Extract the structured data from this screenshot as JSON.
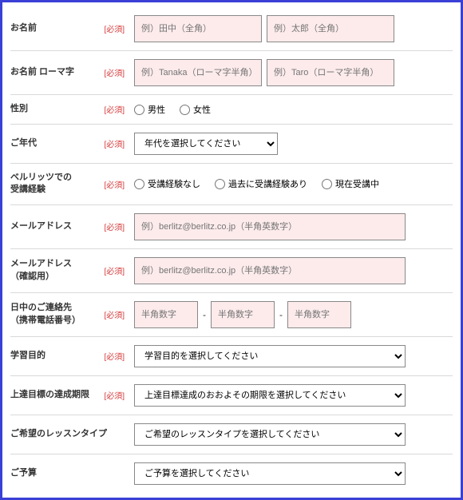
{
  "colors": {
    "border": "#3a3fd6",
    "required": "#d63a3a",
    "pink_bg": "#fdebec",
    "input_border": "#888888",
    "divider": "#d9d9d9"
  },
  "required_label": "[必須]",
  "rows": {
    "name": {
      "label": "お名前",
      "last_ph": "例）田中（全角）",
      "first_ph": "例）太郎（全角）"
    },
    "name_roma": {
      "label": "お名前 ローマ字",
      "last_ph": "例）Tanaka（ローマ字半角）",
      "first_ph": "例）Taro（ローマ字半角）"
    },
    "gender": {
      "label": "性別",
      "male": "男性",
      "female": "女性"
    },
    "age": {
      "label": "ご年代",
      "placeholder": "年代を選択してください"
    },
    "experience": {
      "label": "ベルリッツでの\n受講経験",
      "none": "受講経験なし",
      "past": "過去に受講経験あり",
      "current": "現在受講中"
    },
    "email": {
      "label": "メールアドレス",
      "placeholder": "例）berlitz@berlitz.co.jp（半角英数字）"
    },
    "email_confirm": {
      "label": "メールアドレス\n（確認用）",
      "placeholder": "例）berlitz@berlitz.co.jp（半角英数字）"
    },
    "phone": {
      "label": "日中のご連絡先\n（携帯電話番号）",
      "ph": "半角数字"
    },
    "purpose": {
      "label": "学習目的",
      "placeholder": "学習目的を選択してください"
    },
    "deadline": {
      "label": "上達目標の達成期限",
      "placeholder": "上達目標達成のおおよその期限を選択してください"
    },
    "lesson_type": {
      "label": "ご希望のレッスンタイプ",
      "placeholder": "ご希望のレッスンタイプを選択してください"
    },
    "budget": {
      "label": "ご予算",
      "placeholder": "ご予算を選択してください"
    }
  }
}
